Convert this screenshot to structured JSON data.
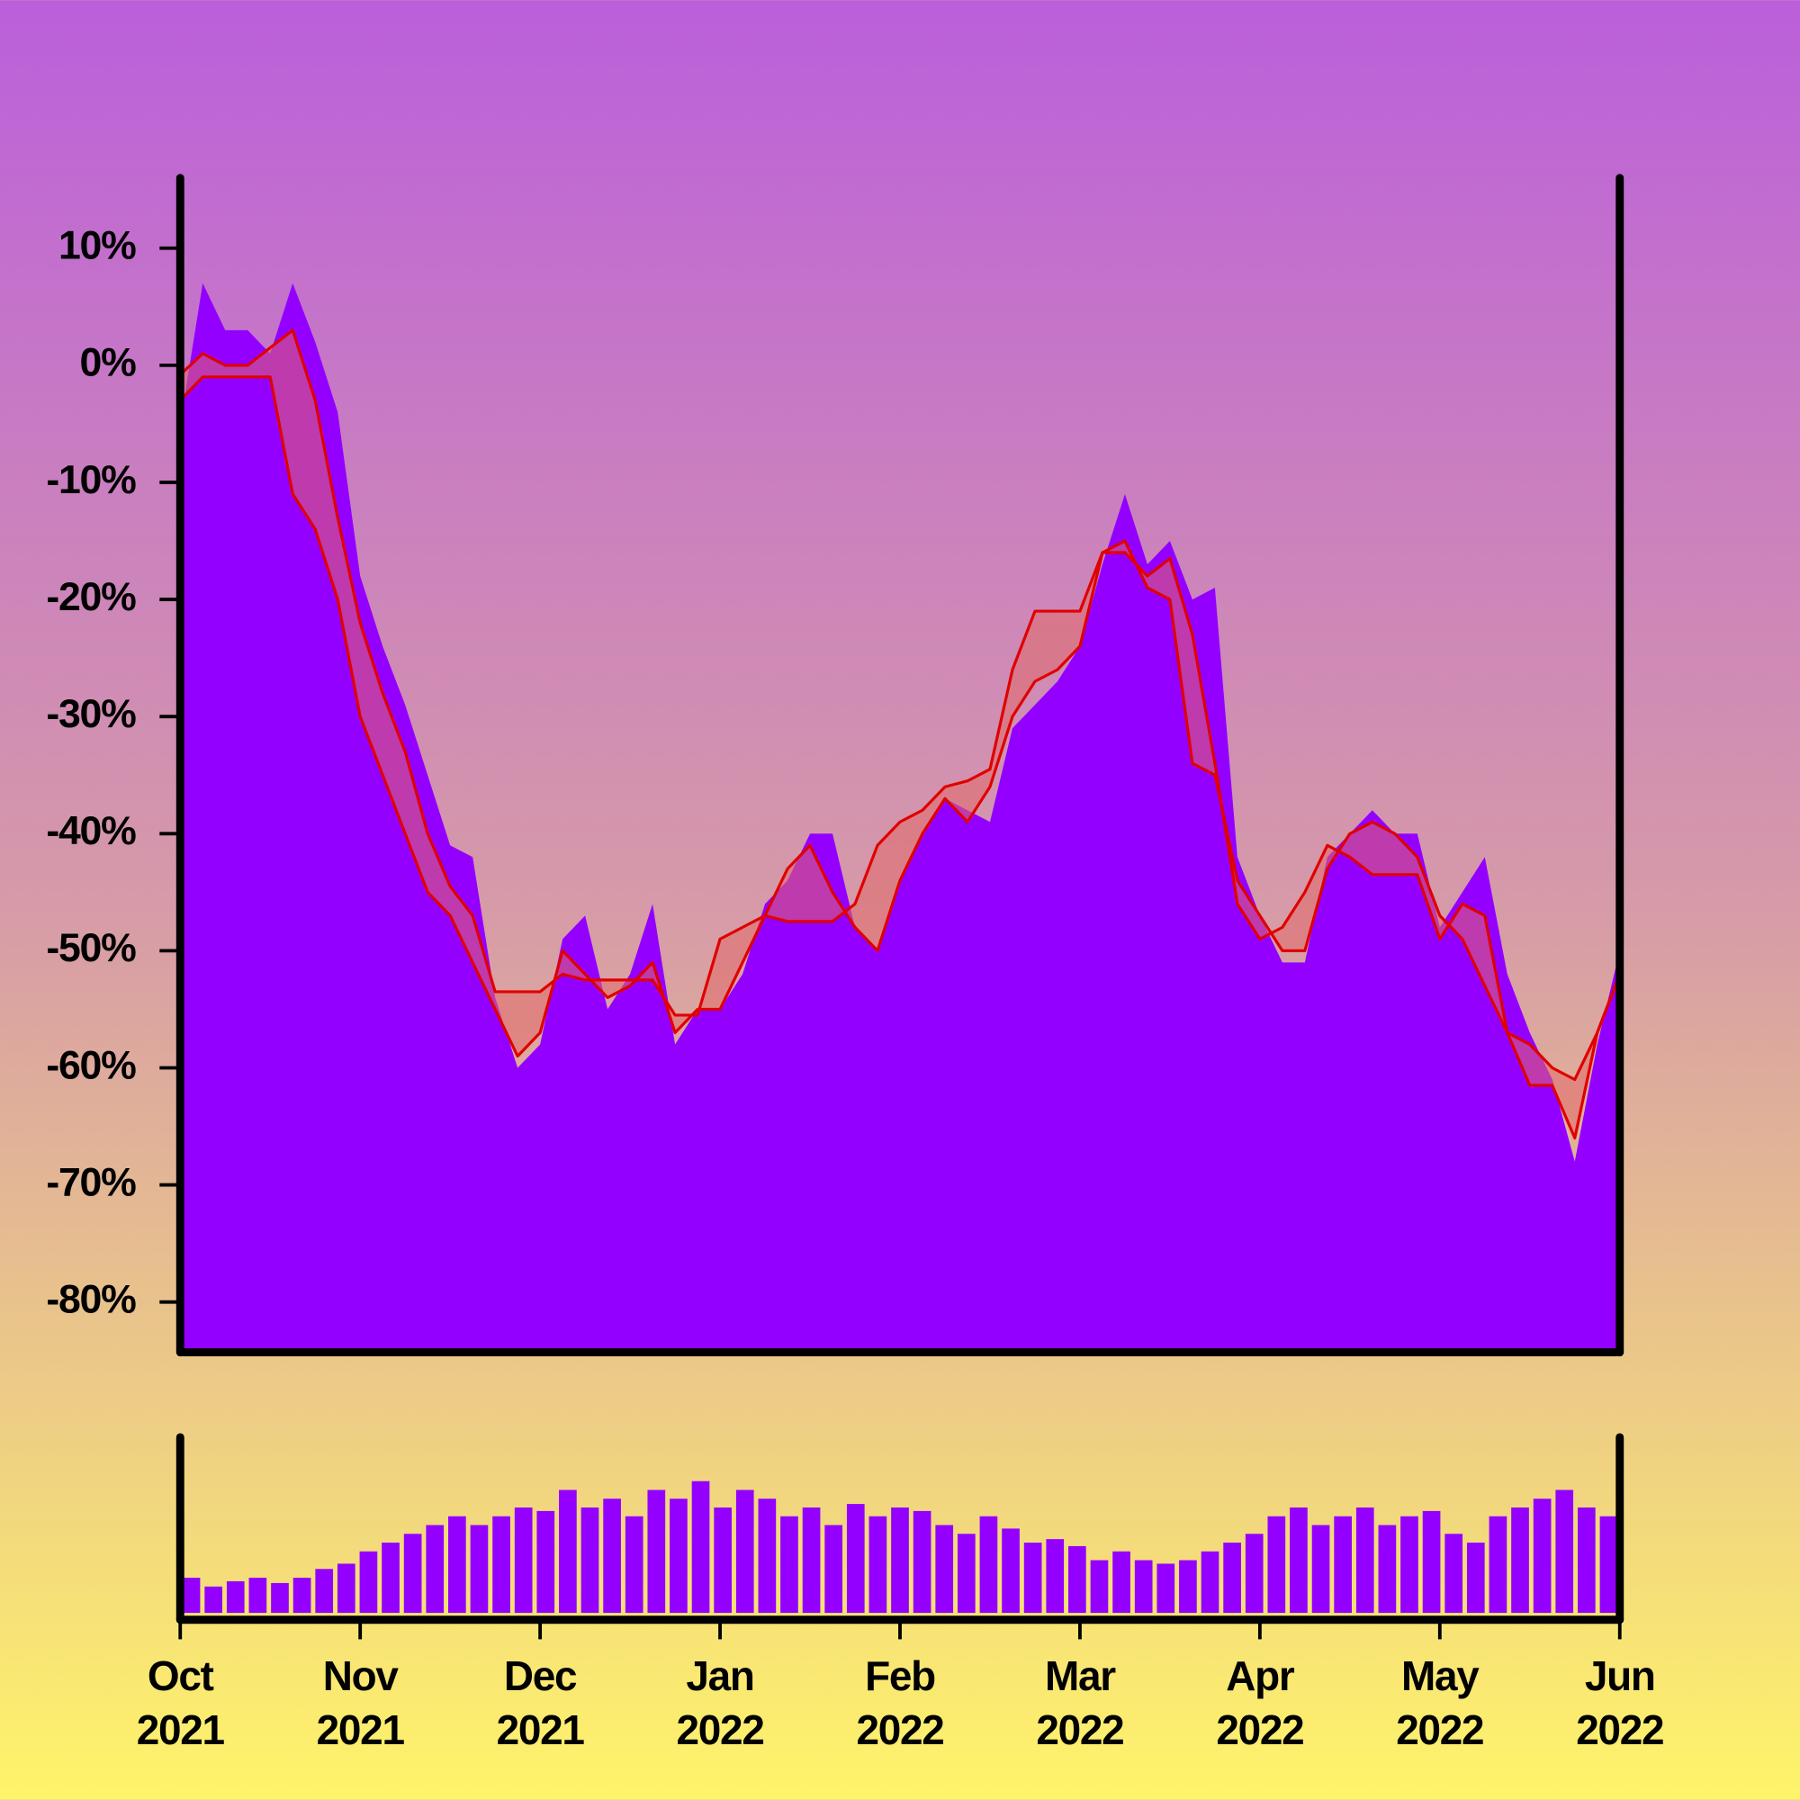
{
  "chart_data": [
    {
      "type": "area",
      "xlim": [
        "2021-10",
        "2022-06"
      ],
      "ylim": [
        -84,
        16
      ],
      "yticks": [
        {
          "value": 10,
          "label": "10%"
        },
        {
          "value": 0,
          "label": "0%"
        },
        {
          "value": -10,
          "label": "-10%"
        },
        {
          "value": -20,
          "label": "-20%"
        },
        {
          "value": -30,
          "label": "-30%"
        },
        {
          "value": -40,
          "label": "-40%"
        },
        {
          "value": -50,
          "label": "-50%"
        },
        {
          "value": -60,
          "label": "-60%"
        },
        {
          "value": -70,
          "label": "-70%"
        },
        {
          "value": -80,
          "label": "-80%"
        }
      ],
      "band_color": "#e06a6a",
      "series": [
        {
          "type": "area",
          "color": "#9400ff",
          "values": [
            -5,
            7,
            3,
            3,
            1,
            7,
            2,
            -4,
            -18,
            -24,
            -29,
            -35,
            -41,
            -42,
            -54,
            -60,
            -58,
            -49,
            -47,
            -55,
            -52,
            -46,
            -58,
            -55,
            -55,
            -52,
            -46,
            -44,
            -40,
            -40,
            -48,
            -50,
            -44,
            -40,
            -37,
            -38,
            -39,
            -31,
            -29,
            -27,
            -24,
            -17,
            -11,
            -17,
            -15,
            -20,
            -19,
            -42,
            -47,
            -51,
            -51,
            -42,
            -40,
            -38,
            -40,
            -40,
            -48,
            -45,
            -42,
            -52,
            -57,
            -61,
            -68,
            -58,
            -50
          ]
        },
        {
          "type": "line",
          "color": "#e00000",
          "values": [
            -0.8,
            1,
            0,
            0,
            1.5,
            3,
            -3,
            -13,
            -22,
            -28,
            -33,
            -40,
            -44.5,
            -47,
            -53.5,
            -53.5,
            -53.5,
            -52,
            -52.5,
            -52.5,
            -52.5,
            -52.5,
            -55.5,
            -55.5,
            -49,
            -48,
            -47,
            -47.5,
            -47.5,
            -47.5,
            -46,
            -41,
            -39,
            -38,
            -36,
            -35.5,
            -34.5,
            -26,
            -21,
            -21,
            -21,
            -16,
            -16,
            -18,
            -16.5,
            -23,
            -34,
            -46,
            -49,
            -48,
            -45,
            -41,
            -42,
            -43.5,
            -43.5,
            -43.5,
            -49,
            -46,
            -47,
            -57,
            -61.5,
            -61.5,
            -66,
            -57,
            -52
          ]
        },
        {
          "type": "line",
          "color": "#e00000",
          "values": [
            -3,
            -1,
            -1,
            -1,
            -1,
            -11,
            -14,
            -20,
            -30,
            -35,
            -40,
            -45,
            -47,
            -51,
            -55,
            -59,
            -57,
            -50,
            -52,
            -54,
            -53,
            -51,
            -57,
            -55,
            -55,
            -51,
            -47,
            -43,
            -41,
            -45,
            -48,
            -50,
            -44,
            -40,
            -37,
            -39,
            -36,
            -30,
            -27,
            -26,
            -24,
            -16,
            -15,
            -19,
            -20,
            -34,
            -35,
            -44,
            -47,
            -50,
            -50,
            -43,
            -40,
            -39,
            -40,
            -42,
            -47,
            -49,
            -53,
            -57,
            -58,
            -60,
            -61,
            -57,
            -52
          ]
        }
      ]
    },
    {
      "type": "bar",
      "xlim": [
        "2021-10",
        "2022-06"
      ],
      "ylim": [
        0,
        100
      ],
      "color": "#9400ff",
      "values": [
        20,
        15,
        18,
        20,
        17,
        20,
        25,
        28,
        35,
        40,
        45,
        50,
        55,
        50,
        55,
        60,
        58,
        70,
        60,
        65,
        55,
        70,
        65,
        75,
        60,
        70,
        65,
        55,
        60,
        50,
        62,
        55,
        60,
        58,
        50,
        45,
        55,
        48,
        40,
        42,
        38,
        30,
        35,
        30,
        28,
        30,
        35,
        40,
        45,
        55,
        60,
        50,
        55,
        60,
        50,
        55,
        58,
        45,
        40,
        55,
        60,
        65,
        70,
        60,
        55
      ],
      "xticks": [
        {
          "value": "2021-10",
          "label": [
            "Oct",
            "2021"
          ]
        },
        {
          "value": "2021-11",
          "label": [
            "Nov",
            "2021"
          ]
        },
        {
          "value": "2021-12",
          "label": [
            "Dec",
            "2021"
          ]
        },
        {
          "value": "2022-01",
          "label": [
            "Jan",
            "2022"
          ]
        },
        {
          "value": "2022-02",
          "label": [
            "Feb",
            "2022"
          ]
        },
        {
          "value": "2022-03",
          "label": [
            "Mar",
            "2022"
          ]
        },
        {
          "value": "2022-04",
          "label": [
            "Apr",
            "2022"
          ]
        },
        {
          "value": "2022-05",
          "label": [
            "May",
            "2022"
          ]
        },
        {
          "value": "2022-06",
          "label": [
            "Jun",
            "2022"
          ]
        }
      ]
    }
  ]
}
